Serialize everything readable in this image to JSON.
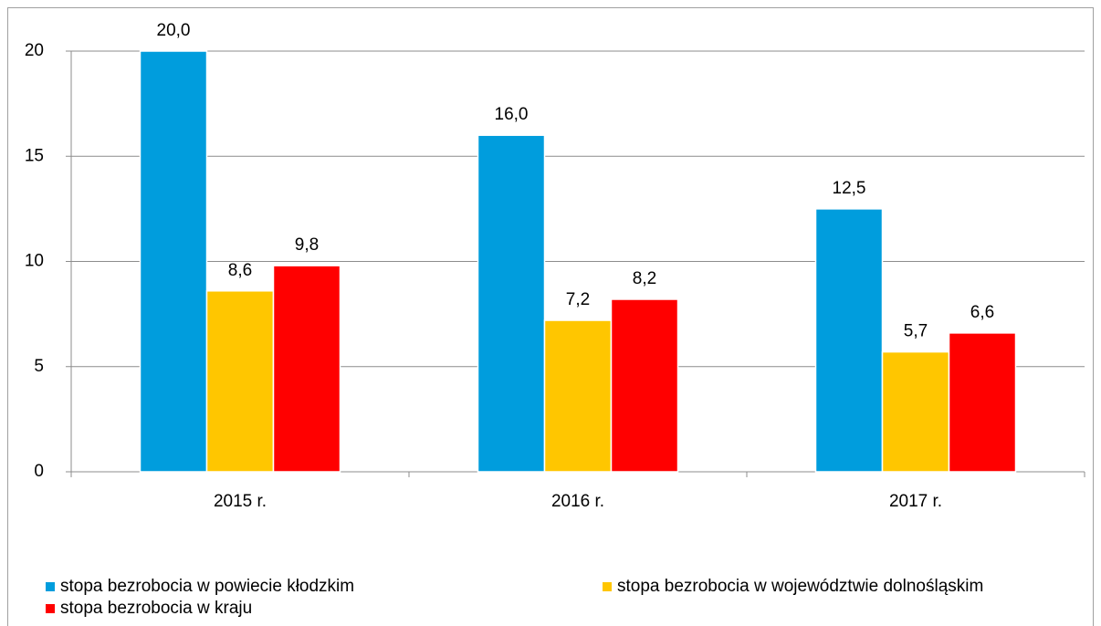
{
  "chart_data": {
    "type": "bar",
    "categories": [
      "2015 r.",
      "2016 r.",
      "2017 r."
    ],
    "series": [
      {
        "name": "stopa bezrobocia w powiecie kłodzkim",
        "color": "#009ddd",
        "values": [
          20.0,
          16.0,
          12.5
        ],
        "value_labels": [
          "20,0",
          "16,0",
          "12,5"
        ]
      },
      {
        "name": "stopa bezrobocia w województwie dolnośląskim",
        "color": "#ffc600",
        "values": [
          8.6,
          7.2,
          5.7
        ],
        "value_labels": [
          "8,6",
          "7,2",
          "5,7"
        ]
      },
      {
        "name": "stopa bezrobocia w kraju",
        "color": "#ff0000",
        "values": [
          9.8,
          8.2,
          6.6
        ],
        "value_labels": [
          "9,8",
          "8,2",
          "6,6"
        ]
      }
    ],
    "ylim": [
      0,
      20
    ],
    "yticks": [
      0,
      5,
      10,
      15,
      20
    ],
    "grid": true
  }
}
